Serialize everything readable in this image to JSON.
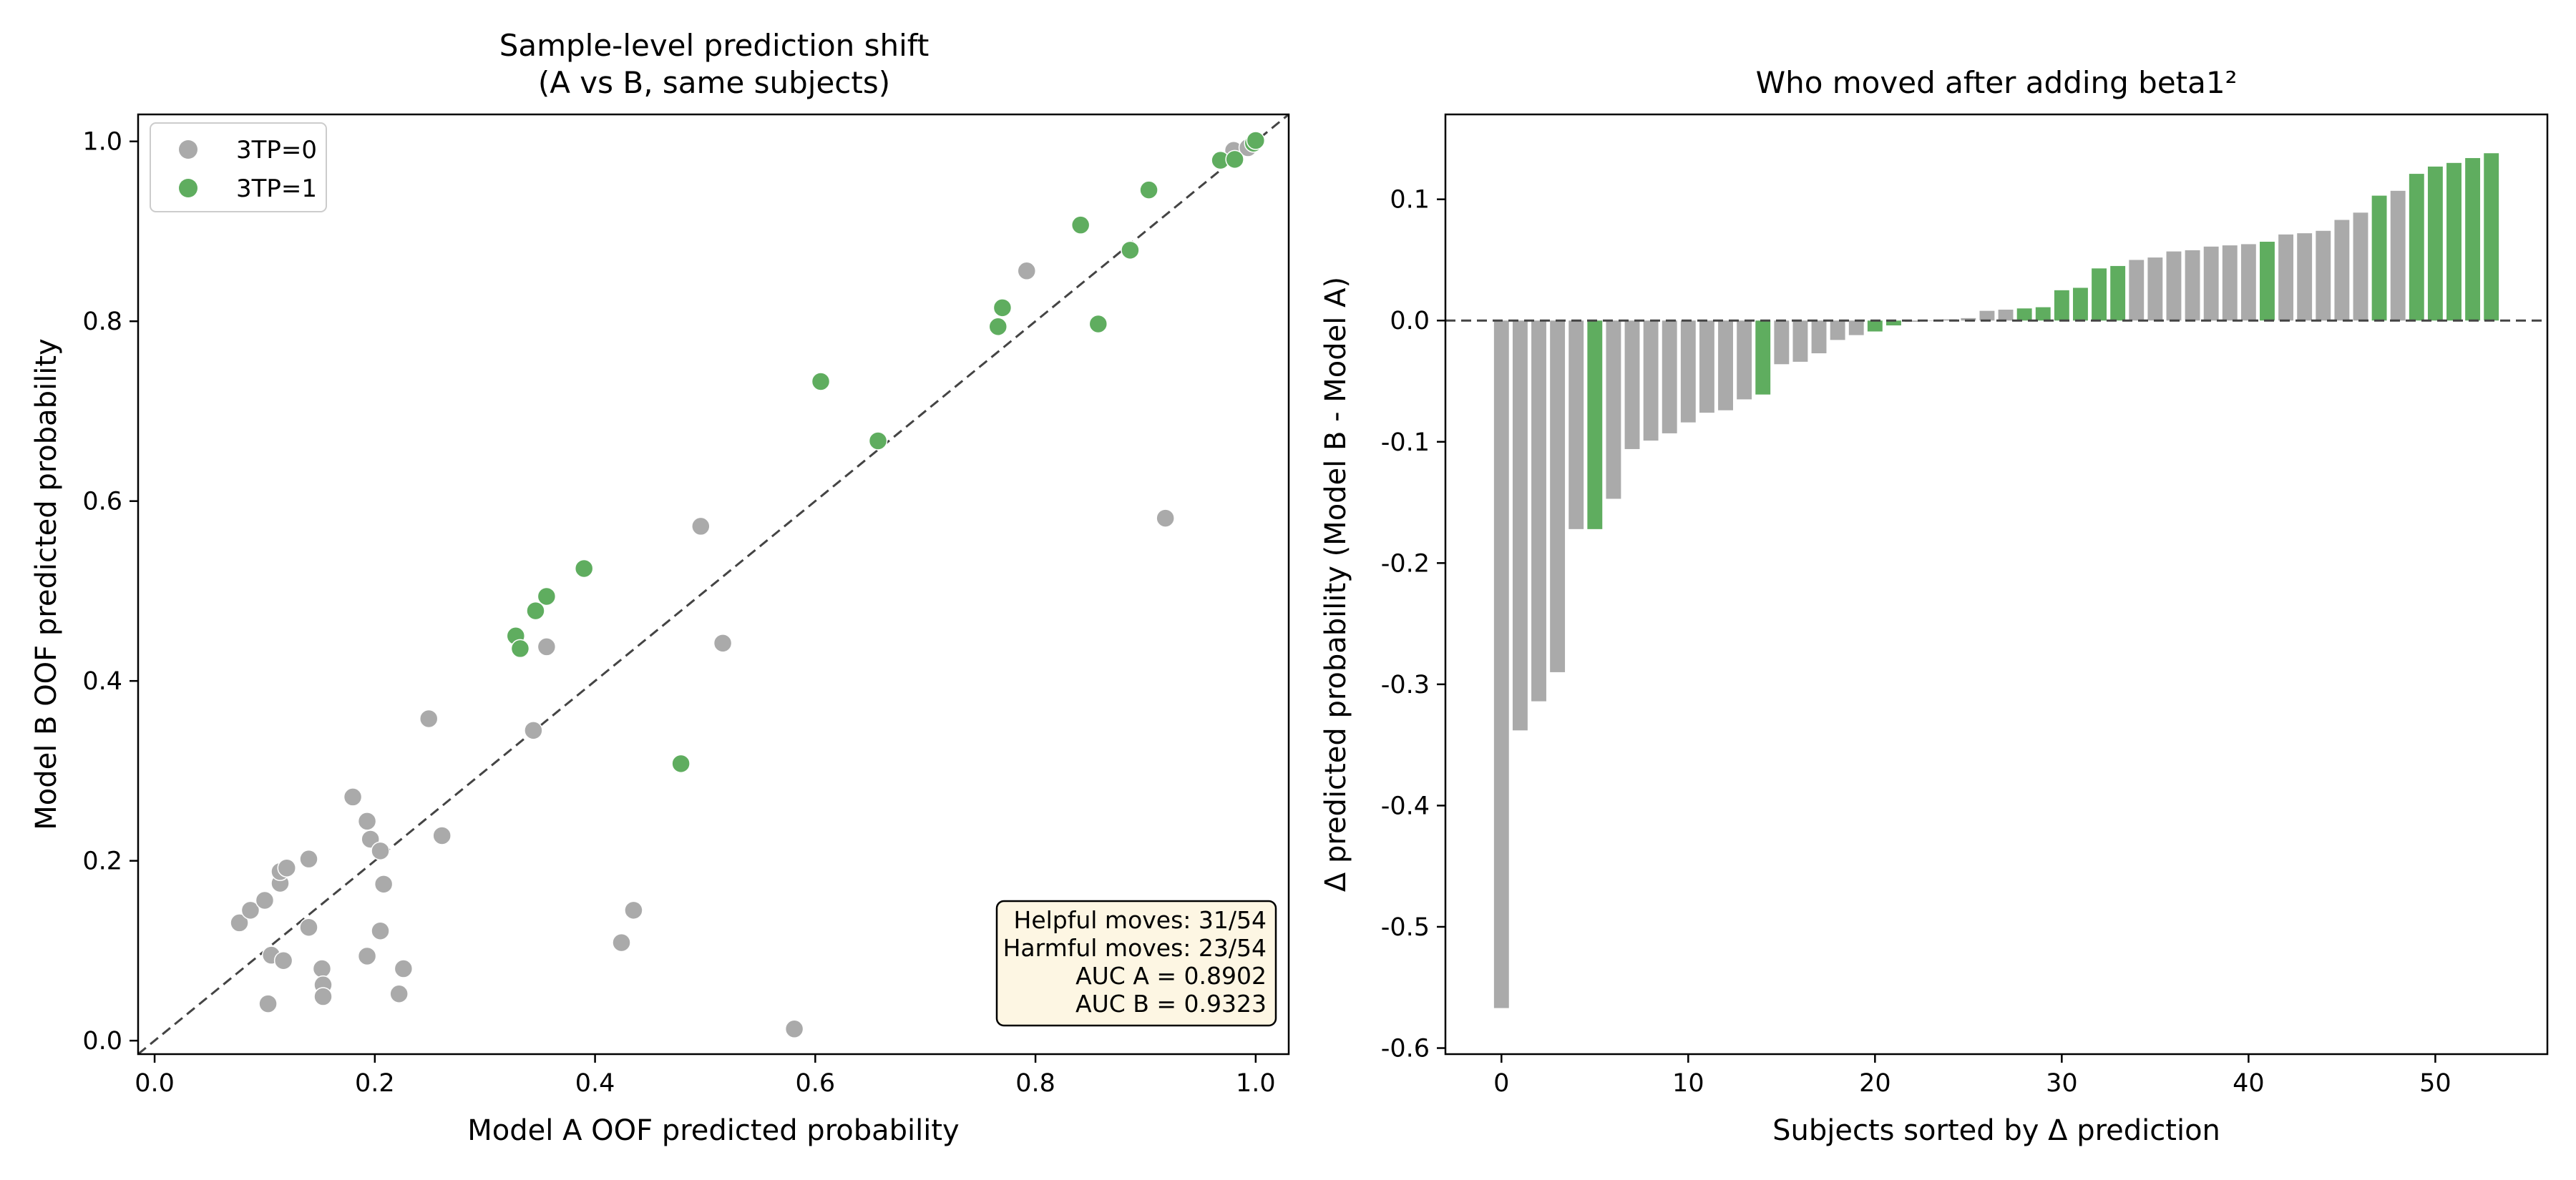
{
  "colors": {
    "neg": "#aaaaaa",
    "pos": "#5fad5f",
    "diag": "#444444",
    "stat_fill": "#fdf6e3"
  },
  "chart_data": [
    {
      "type": "scatter",
      "title_line1": "Sample-level prediction shift",
      "title_line2": "(A vs B, same subjects)",
      "xlabel": "Model A OOF predicted probability",
      "ylabel": "Model B OOF predicted probability",
      "xlim": [
        -0.015,
        1.03
      ],
      "ylim": [
        -0.015,
        1.03
      ],
      "xticks": [
        "0.0",
        "0.2",
        "0.4",
        "0.6",
        "0.8",
        "1.0"
      ],
      "yticks": [
        "0.0",
        "0.2",
        "0.4",
        "0.6",
        "0.8",
        "1.0"
      ],
      "diagonal": "y = x",
      "legend": [
        {
          "label": "3TP=0",
          "color_key": "neg"
        },
        {
          "label": "3TP=1",
          "color_key": "pos"
        }
      ],
      "stats": [
        "Helpful moves: 31/54",
        "Harmful moves: 23/54",
        "AUC A = 0.8902",
        "AUC B = 0.9323"
      ],
      "series": [
        {
          "name": "3TP=0",
          "points": [
            [
              0.077,
              0.131
            ],
            [
              0.087,
              0.145
            ],
            [
              0.1,
              0.156
            ],
            [
              0.106,
              0.095
            ],
            [
              0.103,
              0.041
            ],
            [
              0.114,
              0.175
            ],
            [
              0.114,
              0.188
            ],
            [
              0.12,
              0.192
            ],
            [
              0.117,
              0.089
            ],
            [
              0.14,
              0.202
            ],
            [
              0.14,
              0.126
            ],
            [
              0.152,
              0.08
            ],
            [
              0.153,
              0.062
            ],
            [
              0.153,
              0.049
            ],
            [
              0.18,
              0.271
            ],
            [
              0.193,
              0.244
            ],
            [
              0.196,
              0.224
            ],
            [
              0.205,
              0.211
            ],
            [
              0.208,
              0.174
            ],
            [
              0.205,
              0.122
            ],
            [
              0.193,
              0.094
            ],
            [
              0.226,
              0.08
            ],
            [
              0.222,
              0.052
            ],
            [
              0.249,
              0.358
            ],
            [
              0.261,
              0.228
            ],
            [
              0.344,
              0.345
            ],
            [
              0.356,
              0.438
            ],
            [
              0.424,
              0.109
            ],
            [
              0.435,
              0.145
            ],
            [
              0.496,
              0.572
            ],
            [
              0.516,
              0.442
            ],
            [
              0.581,
              0.013
            ],
            [
              0.792,
              0.856
            ],
            [
              0.918,
              0.581
            ],
            [
              0.98,
              0.99
            ],
            [
              0.993,
              0.993
            ]
          ]
        },
        {
          "name": "3TP=1",
          "points": [
            [
              0.328,
              0.45
            ],
            [
              0.332,
              0.436
            ],
            [
              0.346,
              0.478
            ],
            [
              0.356,
              0.494
            ],
            [
              0.39,
              0.525
            ],
            [
              0.478,
              0.308
            ],
            [
              0.605,
              0.733
            ],
            [
              0.657,
              0.667
            ],
            [
              0.766,
              0.794
            ],
            [
              0.77,
              0.815
            ],
            [
              0.841,
              0.907
            ],
            [
              0.857,
              0.797
            ],
            [
              0.886,
              0.879
            ],
            [
              0.903,
              0.946
            ],
            [
              0.968,
              0.979
            ],
            [
              0.981,
              0.98
            ],
            [
              0.998,
              0.998
            ],
            [
              1.0,
              1.001
            ]
          ]
        }
      ]
    },
    {
      "type": "bar",
      "title": "Who moved after adding beta1²",
      "xlabel": "Subjects sorted by Δ prediction",
      "ylabel": "Δ predicted probability (Model B - Model A)",
      "xlim": [
        -3,
        56
      ],
      "ylim": [
        -0.605,
        0.17
      ],
      "xticks": [
        "0",
        "10",
        "20",
        "30",
        "40",
        "50"
      ],
      "yticks": [
        "-0.6",
        "-0.5",
        "-0.4",
        "-0.3",
        "-0.2",
        "-0.1",
        "0.0",
        "0.1"
      ],
      "zero_line": "dashed",
      "values": [
        -0.567,
        -0.338,
        -0.314,
        -0.29,
        -0.172,
        -0.172,
        -0.147,
        -0.106,
        -0.099,
        -0.093,
        -0.084,
        -0.076,
        -0.074,
        -0.065,
        -0.061,
        -0.036,
        -0.034,
        -0.027,
        -0.016,
        -0.012,
        -0.009,
        -0.004,
        -0.001,
        0.0,
        0.001,
        0.002,
        0.008,
        0.009,
        0.01,
        0.011,
        0.025,
        0.027,
        0.043,
        0.045,
        0.05,
        0.052,
        0.057,
        0.058,
        0.061,
        0.062,
        0.063,
        0.065,
        0.071,
        0.072,
        0.074,
        0.083,
        0.089,
        0.103,
        0.107,
        0.121,
        0.127,
        0.13,
        0.134,
        0.138
      ],
      "classes": [
        0,
        0,
        0,
        0,
        0,
        1,
        0,
        0,
        0,
        0,
        0,
        0,
        0,
        0,
        1,
        0,
        0,
        0,
        0,
        0,
        1,
        1,
        0,
        0,
        0,
        0,
        0,
        0,
        1,
        1,
        1,
        1,
        1,
        1,
        0,
        0,
        0,
        0,
        0,
        0,
        0,
        1,
        0,
        0,
        0,
        0,
        0,
        1,
        0,
        1,
        1,
        1,
        1,
        1
      ]
    }
  ]
}
